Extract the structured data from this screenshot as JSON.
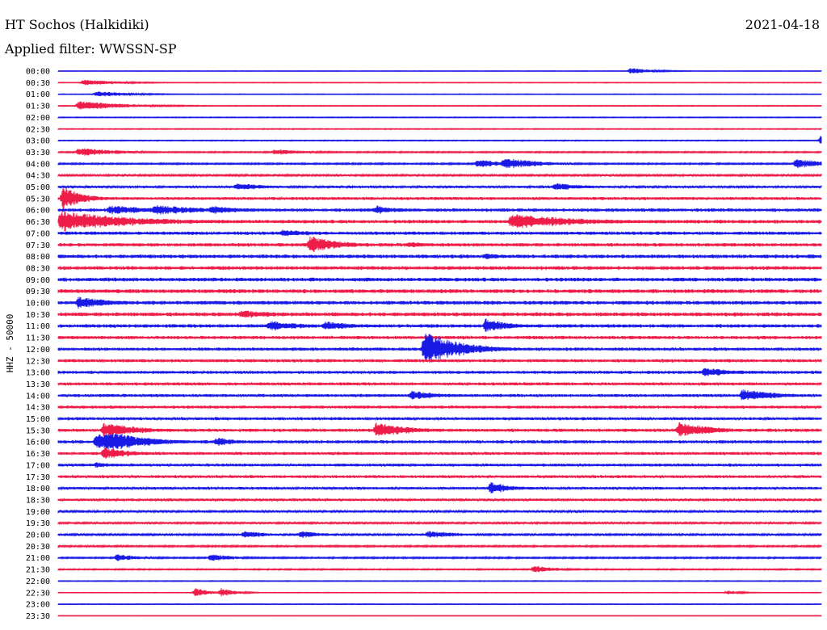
{
  "header": {
    "station": "HT Sochos (Halkidiki)",
    "date": "2021-04-18",
    "filter": "Applied filter: WWSSN-SP"
  },
  "colors": {
    "blue": "#1a1ae6",
    "red": "#ee1c48"
  },
  "chart_data": {
    "type": "line",
    "title": "HT Sochos (Halkidiki)",
    "subtitle": "Applied filter: WWSSN-SP",
    "ylabel": "HHZ - 50000",
    "xlabel": "",
    "grid": false,
    "legend": "none",
    "row_labels": [
      "00:00",
      "00:30",
      "01:00",
      "01:30",
      "02:00",
      "02:30",
      "03:00",
      "03:30",
      "04:00",
      "04:30",
      "05:00",
      "05:30",
      "06:00",
      "06:30",
      "07:00",
      "07:30",
      "08:00",
      "08:30",
      "09:00",
      "09:30",
      "10:00",
      "10:30",
      "11:00",
      "11:30",
      "12:00",
      "12:30",
      "13:00",
      "13:30",
      "14:00",
      "14:30",
      "15:00",
      "15:30",
      "16:00",
      "16:30",
      "17:00",
      "17:30",
      "18:00",
      "18:30",
      "19:00",
      "19:30",
      "20:00",
      "20:30",
      "21:00",
      "21:30",
      "22:00",
      "22:30",
      "23:00",
      "23:30"
    ],
    "noise_level": [
      0.3,
      0.4,
      0.4,
      0.5,
      0.5,
      0.6,
      0.6,
      0.9,
      1.0,
      1.3,
      1.6,
      1.9,
      2.2,
      2.3,
      2.2,
      2.3,
      2.4,
      2.4,
      2.5,
      2.6,
      2.5,
      2.5,
      2.3,
      2.2,
      2.1,
      2.1,
      2.0,
      2.0,
      2.0,
      2.0,
      2.0,
      2.1,
      2.1,
      2.0,
      1.9,
      1.9,
      1.8,
      1.7,
      1.6,
      1.4,
      1.3,
      1.1,
      1.0,
      0.8,
      0.5,
      0.4,
      0.4,
      0.3
    ],
    "events": [
      {
        "row": 1,
        "minute": 1.0,
        "amplitude": 4,
        "duration": 1.5
      },
      {
        "row": 0,
        "minute": 22.5,
        "amplitude": 4,
        "duration": 1.0
      },
      {
        "row": 2,
        "minute": 1.5,
        "amplitude": 4,
        "duration": 1.5
      },
      {
        "row": 3,
        "minute": 0.8,
        "amplitude": 6,
        "duration": 2.0
      },
      {
        "row": 6,
        "minute": 30.0,
        "amplitude": 8,
        "duration": 0.5
      },
      {
        "row": 7,
        "minute": 0.8,
        "amplitude": 6,
        "duration": 1.5
      },
      {
        "row": 7,
        "minute": 8.5,
        "amplitude": 4,
        "duration": 1.5
      },
      {
        "row": 8,
        "minute": 16.5,
        "amplitude": 6,
        "duration": 1.0
      },
      {
        "row": 8,
        "minute": 17.5,
        "amplitude": 8,
        "duration": 1.5
      },
      {
        "row": 8,
        "minute": 29.0,
        "amplitude": 6,
        "duration": 1.5
      },
      {
        "row": 10,
        "minute": 7.0,
        "amplitude": 5,
        "duration": 1.5
      },
      {
        "row": 10,
        "minute": 19.5,
        "amplitude": 5,
        "duration": 1.5
      },
      {
        "row": 11,
        "minute": 0.2,
        "amplitude": 16,
        "duration": 0.8
      },
      {
        "row": 12,
        "minute": 2.0,
        "amplitude": 6,
        "duration": 2.5
      },
      {
        "row": 12,
        "minute": 3.8,
        "amplitude": 7,
        "duration": 2.0
      },
      {
        "row": 12,
        "minute": 6.0,
        "amplitude": 6,
        "duration": 1.5
      },
      {
        "row": 12,
        "minute": 12.5,
        "amplitude": 6,
        "duration": 1.0
      },
      {
        "row": 13,
        "minute": 0.1,
        "amplitude": 14,
        "duration": 3.0
      },
      {
        "row": 13,
        "minute": 17.8,
        "amplitude": 10,
        "duration": 3.0
      },
      {
        "row": 14,
        "minute": 8.8,
        "amplitude": 5,
        "duration": 1.5
      },
      {
        "row": 15,
        "minute": 9.9,
        "amplitude": 12,
        "duration": 1.2
      },
      {
        "row": 15,
        "minute": 13.8,
        "amplitude": 4,
        "duration": 1.0
      },
      {
        "row": 16,
        "minute": 16.8,
        "amplitude": 4,
        "duration": 1.0
      },
      {
        "row": 20,
        "minute": 0.8,
        "amplitude": 8,
        "duration": 1.5
      },
      {
        "row": 21,
        "minute": 7.2,
        "amplitude": 6,
        "duration": 1.5
      },
      {
        "row": 22,
        "minute": 8.3,
        "amplitude": 7,
        "duration": 1.5
      },
      {
        "row": 22,
        "minute": 10.5,
        "amplitude": 6,
        "duration": 1.5
      },
      {
        "row": 22,
        "minute": 16.8,
        "amplitude": 10,
        "duration": 1.0
      },
      {
        "row": 24,
        "minute": 14.4,
        "amplitude": 22,
        "duration": 1.5
      },
      {
        "row": 26,
        "minute": 25.4,
        "amplitude": 6,
        "duration": 1.5
      },
      {
        "row": 28,
        "minute": 13.9,
        "amplitude": 6,
        "duration": 1.5
      },
      {
        "row": 28,
        "minute": 26.9,
        "amplitude": 8,
        "duration": 1.5
      },
      {
        "row": 31,
        "minute": 12.5,
        "amplitude": 10,
        "duration": 1.5
      },
      {
        "row": 31,
        "minute": 24.4,
        "amplitude": 10,
        "duration": 1.5
      },
      {
        "row": 31,
        "minute": 1.8,
        "amplitude": 10,
        "duration": 1.5
      },
      {
        "row": 32,
        "minute": 1.5,
        "amplitude": 12,
        "duration": 2.0
      },
      {
        "row": 32,
        "minute": 2.0,
        "amplitude": 14,
        "duration": 1.5
      },
      {
        "row": 32,
        "minute": 6.2,
        "amplitude": 6,
        "duration": 1.0
      },
      {
        "row": 33,
        "minute": 1.8,
        "amplitude": 8,
        "duration": 1.2
      },
      {
        "row": 34,
        "minute": 1.5,
        "amplitude": 4,
        "duration": 1.0
      },
      {
        "row": 36,
        "minute": 17.0,
        "amplitude": 8,
        "duration": 1.0
      },
      {
        "row": 40,
        "minute": 7.3,
        "amplitude": 5,
        "duration": 1.0
      },
      {
        "row": 40,
        "minute": 9.5,
        "amplitude": 5,
        "duration": 1.0
      },
      {
        "row": 40,
        "minute": 14.5,
        "amplitude": 5,
        "duration": 1.5
      },
      {
        "row": 42,
        "minute": 2.3,
        "amplitude": 5,
        "duration": 1.0
      },
      {
        "row": 42,
        "minute": 6.0,
        "amplitude": 5,
        "duration": 1.0
      },
      {
        "row": 43,
        "minute": 18.7,
        "amplitude": 5,
        "duration": 1.0
      },
      {
        "row": 45,
        "minute": 5.4,
        "amplitude": 6,
        "duration": 0.6
      },
      {
        "row": 45,
        "minute": 6.4,
        "amplitude": 6,
        "duration": 0.6
      },
      {
        "row": 45,
        "minute": 26.3,
        "amplitude": 3,
        "duration": 0.6
      }
    ]
  }
}
